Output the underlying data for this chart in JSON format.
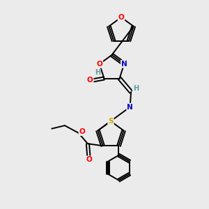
{
  "bg_color": "#ebebeb",
  "bond_color": "#000000",
  "atom_colors": {
    "O": "#ff0000",
    "N": "#0000cc",
    "S": "#ccaa00",
    "H": "#669999"
  },
  "lw": 1.4,
  "fs": 7.5
}
